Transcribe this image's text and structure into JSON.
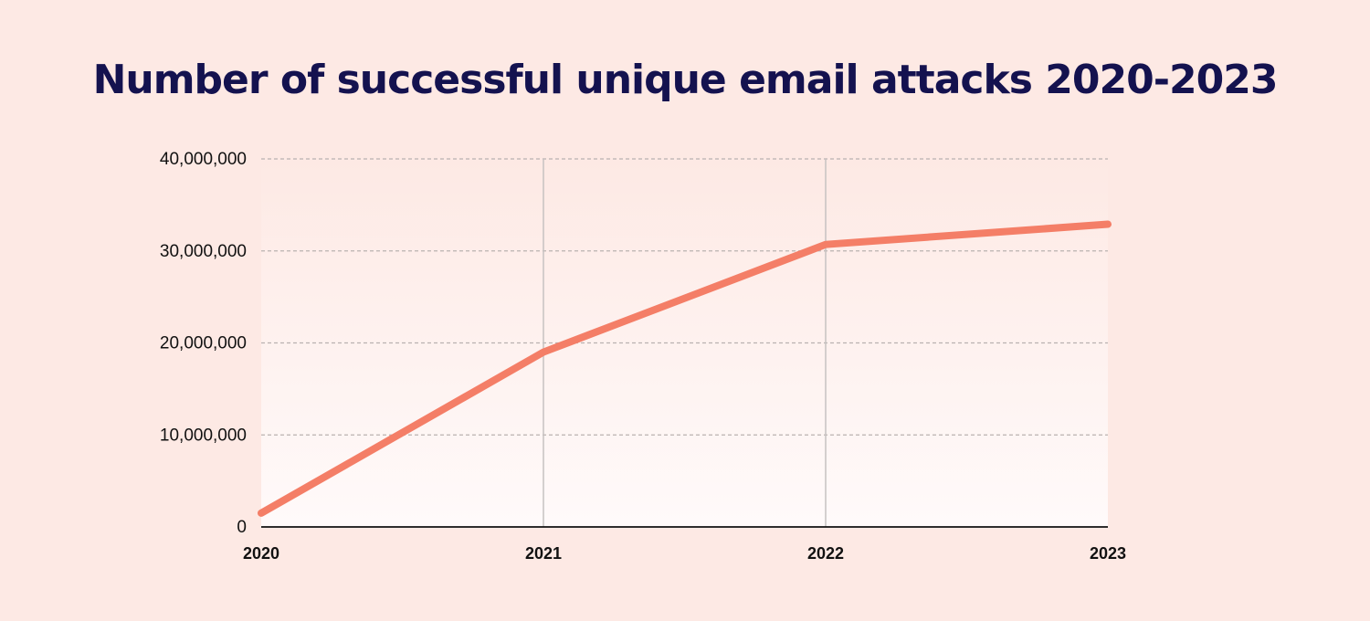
{
  "chart_data": {
    "type": "line",
    "title": "Number of successful unique email attacks 2020-2023",
    "x": [
      "2020",
      "2021",
      "2022",
      "2023"
    ],
    "series": [
      {
        "values": [
          1500000,
          19000000,
          30700000,
          32900000
        ]
      }
    ],
    "y_ticks": [
      "0",
      "10,000,000",
      "20,000,000",
      "30,000,000",
      "40,000,000"
    ],
    "y_tick_values": [
      0,
      10000000,
      20000000,
      30000000,
      40000000
    ],
    "ylim": [
      0,
      40000000
    ],
    "xlabel": "",
    "ylabel": "",
    "grid": "horizontal dashed, vertical solid at interior years",
    "colors": {
      "line": "#f47e67",
      "title": "#14124f",
      "background": "#fde9e4"
    }
  }
}
